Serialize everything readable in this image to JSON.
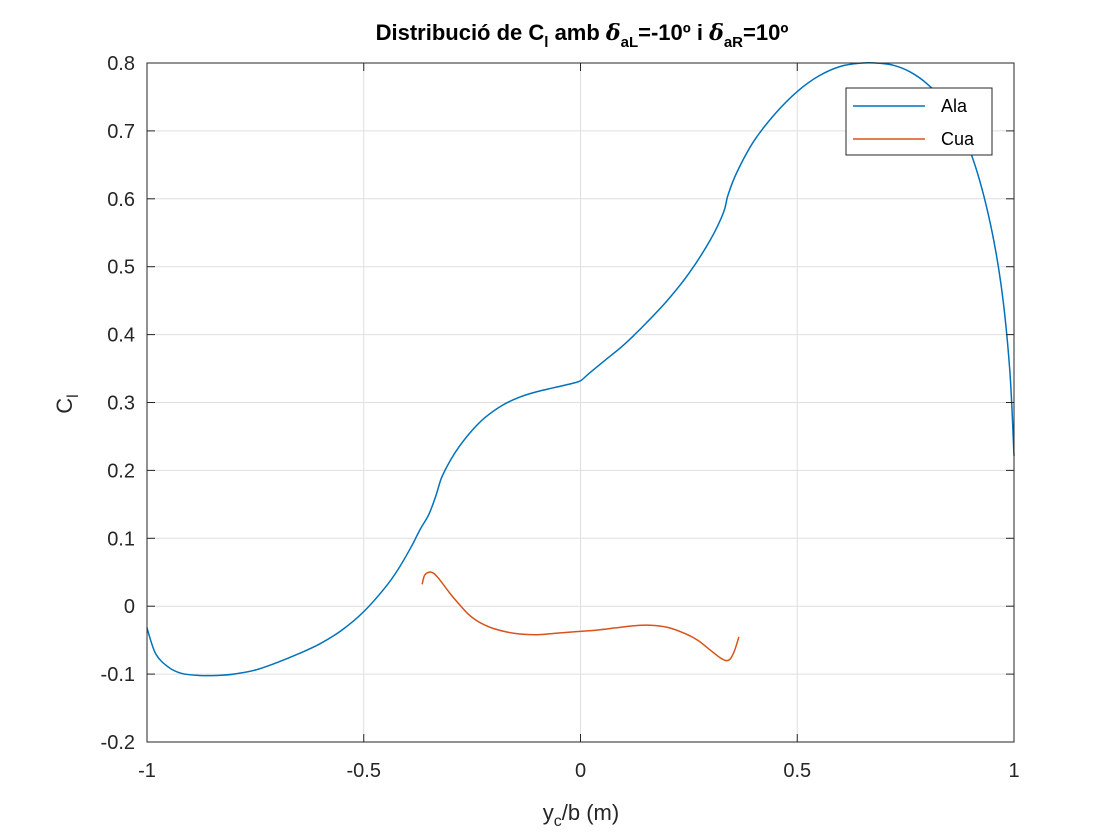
{
  "chart_data": {
    "type": "line",
    "title": {
      "pre": "Distribució de C",
      "pre_sub": "l",
      "mid": " amb ",
      "delta1": "δ",
      "delta1_sub": "aL",
      "delta1_value": "=-10º i ",
      "delta2": "δ",
      "delta2_sub": "aR",
      "delta2_value": "=10º"
    },
    "xlabel": {
      "main": "y",
      "sub": "c",
      "rest": "/b (m)"
    },
    "ylabel": {
      "main": "C",
      "sub": "l"
    },
    "xlim": [
      -1,
      1
    ],
    "ylim": [
      -0.2,
      0.8
    ],
    "xticks": [
      -1,
      -0.5,
      0,
      0.5,
      1
    ],
    "xtick_labels": [
      "-1",
      "-0.5",
      "0",
      "0.5",
      "1"
    ],
    "yticks": [
      -0.2,
      -0.1,
      0,
      0.1,
      0.2,
      0.3,
      0.4,
      0.5,
      0.6,
      0.7,
      0.8
    ],
    "ytick_labels": [
      "-0.2",
      "-0.1",
      "0",
      "0.1",
      "0.2",
      "0.3",
      "0.4",
      "0.5",
      "0.6",
      "0.7",
      "0.8"
    ],
    "grid": true,
    "legend_position": "top-right",
    "series": [
      {
        "name": "Ala",
        "color": "#0072BD",
        "x": [
          -1.0,
          -0.98,
          -0.95,
          -0.92,
          -0.88,
          -0.84,
          -0.8,
          -0.75,
          -0.7,
          -0.65,
          -0.6,
          -0.55,
          -0.5,
          -0.45,
          -0.42,
          -0.39,
          -0.37,
          -0.35,
          -0.335,
          -0.33,
          -0.32,
          -0.3,
          -0.28,
          -0.25,
          -0.22,
          -0.18,
          -0.14,
          -0.1,
          -0.06,
          -0.02,
          0.0,
          0.02,
          0.06,
          0.1,
          0.15,
          0.2,
          0.25,
          0.3,
          0.33,
          0.34,
          0.36,
          0.4,
          0.45,
          0.5,
          0.55,
          0.6,
          0.65,
          0.68,
          0.72,
          0.76,
          0.8,
          0.85,
          0.9,
          0.94,
          0.97,
          0.99,
          1.0
        ],
        "y": [
          -0.032,
          -0.07,
          -0.09,
          -0.099,
          -0.102,
          -0.102,
          -0.1,
          -0.094,
          -0.083,
          -0.07,
          -0.055,
          -0.035,
          -0.008,
          0.028,
          0.055,
          0.088,
          0.113,
          0.135,
          0.16,
          0.17,
          0.19,
          0.215,
          0.235,
          0.259,
          0.278,
          0.296,
          0.308,
          0.316,
          0.322,
          0.328,
          0.332,
          0.343,
          0.364,
          0.385,
          0.416,
          0.45,
          0.49,
          0.54,
          0.58,
          0.605,
          0.638,
          0.685,
          0.726,
          0.758,
          0.781,
          0.795,
          0.8,
          0.8,
          0.797,
          0.787,
          0.769,
          0.735,
          0.668,
          0.579,
          0.474,
          0.35,
          0.222
        ]
      },
      {
        "name": "Cua",
        "color": "#D95319",
        "x": [
          -0.365,
          -0.36,
          -0.35,
          -0.34,
          -0.33,
          -0.32,
          -0.3,
          -0.28,
          -0.26,
          -0.24,
          -0.22,
          -0.2,
          -0.17,
          -0.14,
          -0.1,
          -0.06,
          -0.02,
          0.0,
          0.04,
          0.08,
          0.12,
          0.16,
          0.2,
          0.24,
          0.27,
          0.3,
          0.32,
          0.335,
          0.345,
          0.355,
          0.365
        ],
        "y": [
          0.033,
          0.045,
          0.05,
          0.049,
          0.043,
          0.035,
          0.018,
          0.003,
          -0.011,
          -0.021,
          -0.028,
          -0.033,
          -0.038,
          -0.041,
          -0.042,
          -0.04,
          -0.038,
          -0.037,
          -0.035,
          -0.032,
          -0.029,
          -0.028,
          -0.031,
          -0.04,
          -0.05,
          -0.065,
          -0.075,
          -0.08,
          -0.078,
          -0.066,
          -0.046
        ]
      }
    ]
  }
}
